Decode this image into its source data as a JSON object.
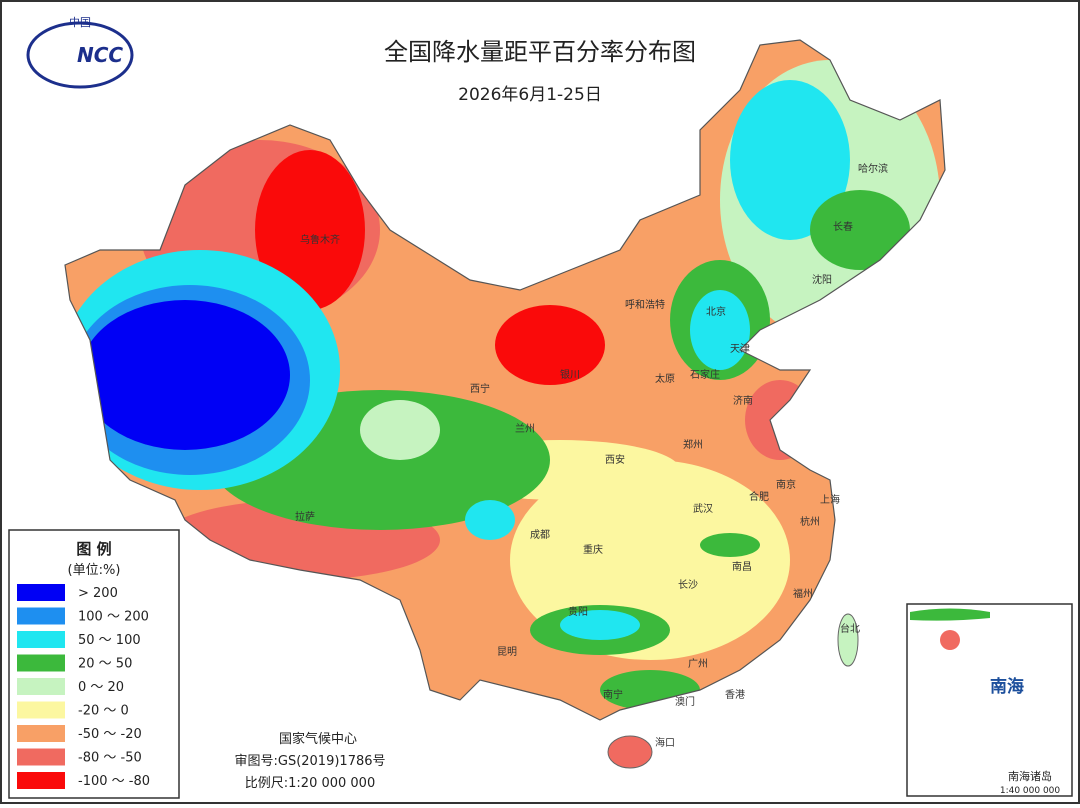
{
  "header": {
    "title": "全国降水量距平百分率分布图",
    "subtitle": "2026年6月1-25日",
    "logo_top": "中国",
    "logo_text": "NCC"
  },
  "legend": {
    "title": "图 例",
    "unit": "(单位:%)",
    "items": [
      {
        "label": "> 200",
        "color": "#0000f5"
      },
      {
        "label": "100 ～ 200",
        "color": "#1e8ff0"
      },
      {
        "label": "50 ～ 100",
        "color": "#20e6f0"
      },
      {
        "label": "20 ～ 50",
        "color": "#3cb93c"
      },
      {
        "label": "0 ～ 20",
        "color": "#c6f3c0"
      },
      {
        "label": "-20 ～ 0",
        "color": "#fcf7a0"
      },
      {
        "label": "-50 ～ -20",
        "color": "#f8a066"
      },
      {
        "label": "-80 ～ -50",
        "color": "#f06a60"
      },
      {
        "label": "-100 ～ -80",
        "color": "#fa0a0a"
      }
    ]
  },
  "cities": [
    "乌鲁木齐",
    "拉萨",
    "西宁",
    "兰州",
    "银川",
    "呼和浩特",
    "北京",
    "天津",
    "石家庄",
    "太原",
    "济南",
    "郑州",
    "西安",
    "成都",
    "重庆",
    "贵阳",
    "昆明",
    "南宁",
    "广州",
    "香港",
    "澳门",
    "海口",
    "长沙",
    "武汉",
    "南昌",
    "合肥",
    "南京",
    "上海",
    "杭州",
    "福州",
    "台北",
    "沈阳",
    "长春",
    "哈尔滨"
  ],
  "footer": {
    "agency": "国家气候中心",
    "approval": "审图号:GS(2019)1786号",
    "scale": "比例尺:1:20 000 000"
  },
  "inset": {
    "sea": "南海",
    "islands": "南海诸岛",
    "scale": "1:40 000 000"
  }
}
